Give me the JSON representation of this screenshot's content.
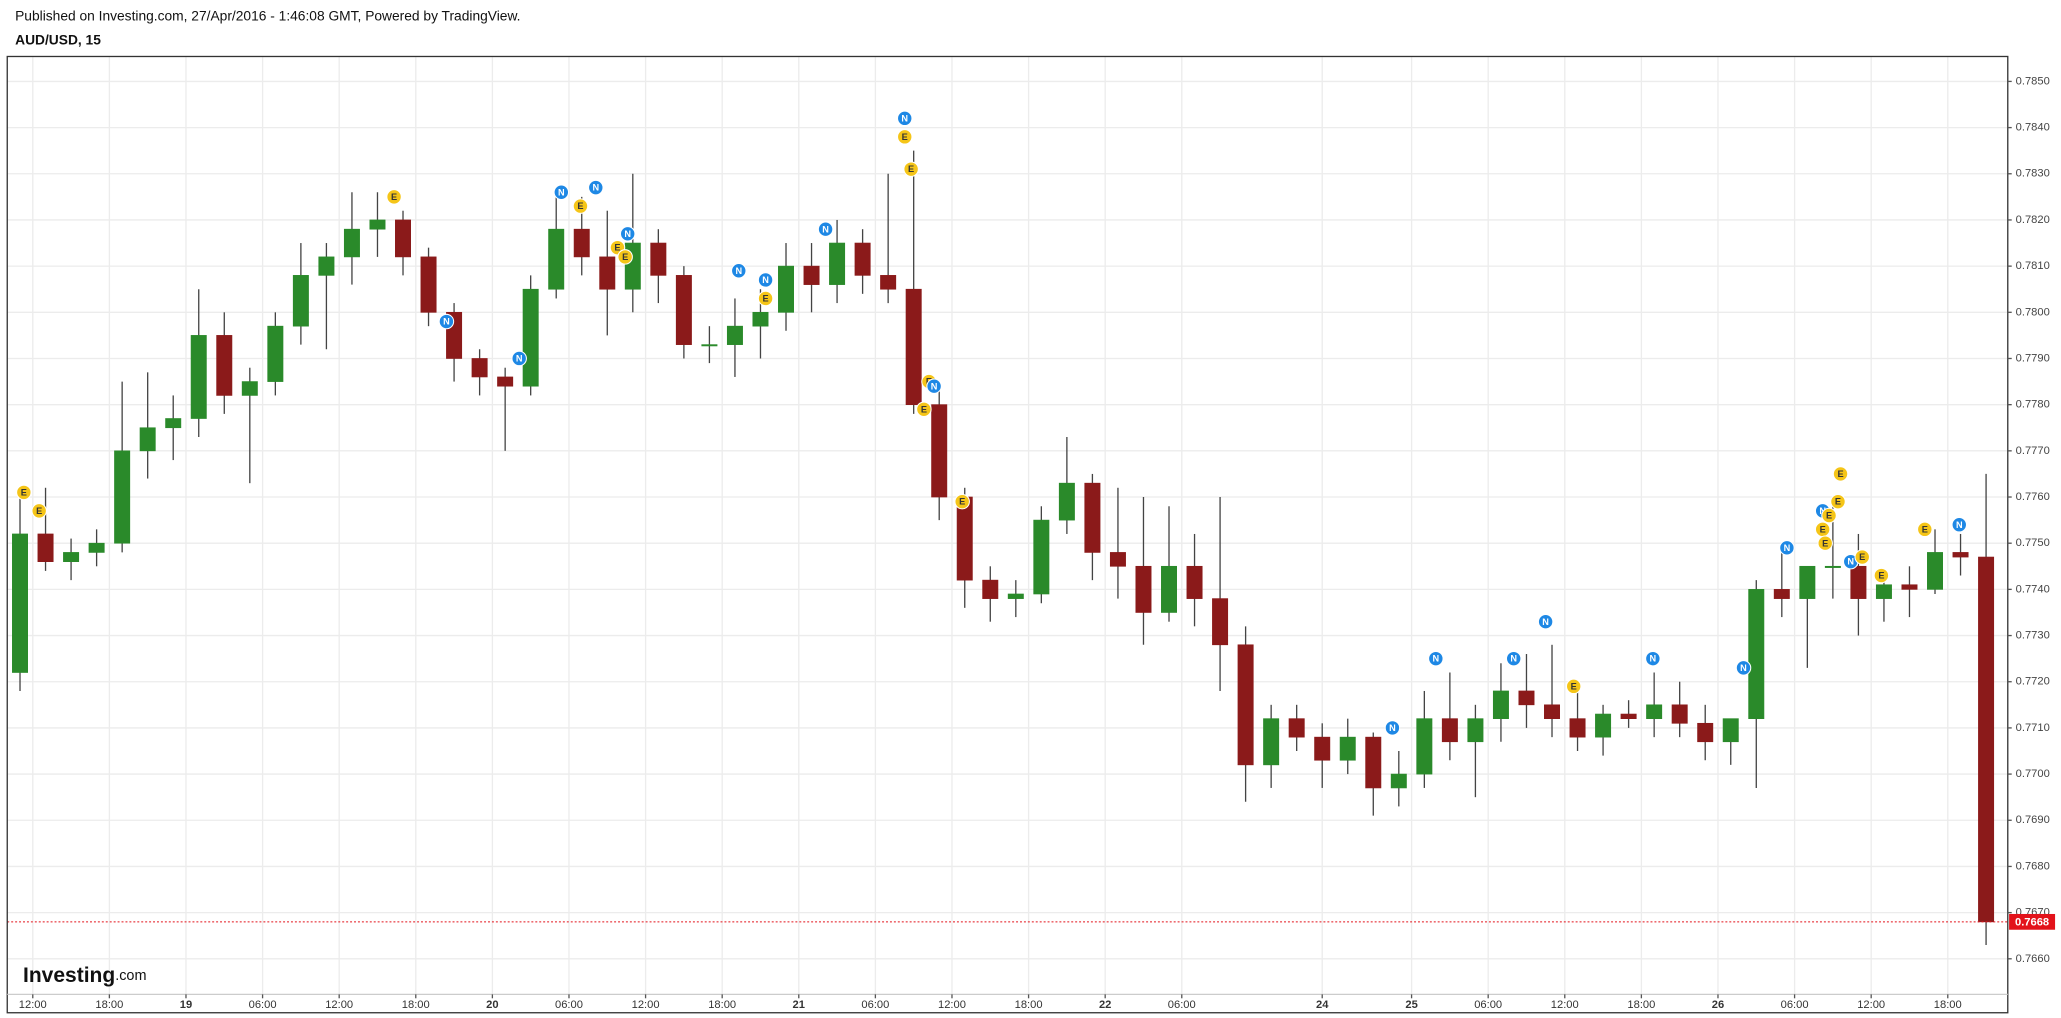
{
  "chart_data": {
    "type": "candlestick",
    "subtitle": "Published on Investing.com, 27/Apr/2016 - 1:46:08 GMT, Powered by TradingView.",
    "title": "AUD/USD, 15",
    "x": [
      10,
      12,
      14,
      16,
      18,
      20,
      22,
      24,
      26,
      28,
      30,
      32,
      34,
      36,
      38,
      40,
      42,
      44,
      46,
      48,
      50,
      52,
      54,
      56,
      58,
      60,
      62,
      64,
      66,
      68,
      70,
      72,
      74,
      76,
      78,
      80,
      82,
      84,
      86,
      88,
      90,
      92,
      94,
      96,
      98,
      100,
      102,
      104,
      106,
      108,
      110,
      112,
      114,
      116,
      118,
      120,
      122,
      124,
      126,
      128,
      130,
      132,
      134,
      136,
      138,
      140,
      142,
      144,
      146,
      148,
      150,
      152,
      154,
      156,
      158,
      160,
      162,
      164
    ],
    "open": [
      0.7722,
      0.7752,
      0.7746,
      0.7748,
      0.775,
      0.777,
      0.7775,
      0.7777,
      0.7795,
      0.7782,
      0.7785,
      0.7797,
      0.7808,
      0.7812,
      0.7818,
      0.782,
      0.7812,
      0.78,
      0.779,
      0.7786,
      0.7784,
      0.7805,
      0.7818,
      0.7812,
      0.7805,
      0.7815,
      0.7808,
      0.7793,
      0.7793,
      0.7797,
      0.78,
      0.781,
      0.7806,
      0.7815,
      0.7808,
      0.7805,
      0.778,
      0.776,
      0.7742,
      0.7738,
      0.7739,
      0.7755,
      0.7763,
      0.7748,
      0.7745,
      0.7735,
      0.7745,
      0.7738,
      0.7728,
      0.7702,
      0.7712,
      0.7708,
      0.7703,
      0.7708,
      0.7697,
      0.77,
      0.7712,
      0.7707,
      0.7712,
      0.7718,
      0.7715,
      0.7712,
      0.7708,
      0.7713,
      0.7712,
      0.7715,
      0.7711,
      0.7707,
      0.7712,
      0.774,
      0.7738,
      0.7745,
      0.7745,
      0.7738,
      0.7741,
      0.774,
      0.7748,
      0.7747
    ],
    "high": [
      0.7762,
      0.7762,
      0.7751,
      0.7753,
      0.7785,
      0.7787,
      0.7782,
      0.7805,
      0.78,
      0.7788,
      0.78,
      0.7815,
      0.7815,
      0.7826,
      0.7826,
      0.7822,
      0.7814,
      0.7802,
      0.7792,
      0.7788,
      0.7808,
      0.7825,
      0.7825,
      0.7822,
      0.783,
      0.7818,
      0.781,
      0.7797,
      0.7803,
      0.7805,
      0.7815,
      0.7815,
      0.782,
      0.7818,
      0.783,
      0.7835,
      0.7783,
      0.7762,
      0.7745,
      0.7742,
      0.7758,
      0.7773,
      0.7765,
      0.7762,
      0.776,
      0.7758,
      0.7752,
      0.776,
      0.7732,
      0.7715,
      0.7715,
      0.7711,
      0.7712,
      0.7709,
      0.7705,
      0.7718,
      0.7722,
      0.7715,
      0.7724,
      0.7726,
      0.7728,
      0.7718,
      0.7715,
      0.7716,
      0.7722,
      0.772,
      0.7715,
      0.7712,
      0.7742,
      0.7748,
      0.7745,
      0.776,
      0.7752,
      0.7744,
      0.7745,
      0.7753,
      0.7752,
      0.7765
    ],
    "low": [
      0.7718,
      0.7744,
      0.7742,
      0.7745,
      0.7748,
      0.7764,
      0.7768,
      0.7773,
      0.7778,
      0.7763,
      0.7782,
      0.7793,
      0.7792,
      0.7806,
      0.7812,
      0.7808,
      0.7797,
      0.7785,
      0.7782,
      0.777,
      0.7782,
      0.7803,
      0.7808,
      0.7795,
      0.78,
      0.7802,
      0.779,
      0.7789,
      0.7786,
      0.779,
      0.7796,
      0.78,
      0.7802,
      0.7804,
      0.7802,
      0.7778,
      0.7755,
      0.7736,
      0.7733,
      0.7734,
      0.7737,
      0.7752,
      0.7742,
      0.7738,
      0.7728,
      0.7733,
      0.7732,
      0.7718,
      0.7694,
      0.7697,
      0.7705,
      0.7697,
      0.77,
      0.7691,
      0.7693,
      0.7697,
      0.7703,
      0.7695,
      0.7707,
      0.771,
      0.7708,
      0.7705,
      0.7704,
      0.771,
      0.7708,
      0.7708,
      0.7703,
      0.7702,
      0.7697,
      0.7734,
      0.7723,
      0.7738,
      0.773,
      0.7733,
      0.7734,
      0.7739,
      0.7743,
      0.7663
    ],
    "close": [
      0.7752,
      0.7746,
      0.7748,
      0.775,
      0.777,
      0.7775,
      0.7777,
      0.7795,
      0.7782,
      0.7785,
      0.7797,
      0.7808,
      0.7812,
      0.7818,
      0.782,
      0.7812,
      0.78,
      0.779,
      0.7786,
      0.7784,
      0.7805,
      0.7818,
      0.7812,
      0.7805,
      0.7815,
      0.7808,
      0.7793,
      0.7793,
      0.7797,
      0.78,
      0.781,
      0.7806,
      0.7815,
      0.7808,
      0.7805,
      0.778,
      0.776,
      0.7742,
      0.7738,
      0.7739,
      0.7755,
      0.7763,
      0.7748,
      0.7745,
      0.7735,
      0.7745,
      0.7738,
      0.7728,
      0.7702,
      0.7712,
      0.7708,
      0.7703,
      0.7708,
      0.7697,
      0.77,
      0.7712,
      0.7707,
      0.7712,
      0.7718,
      0.7715,
      0.7712,
      0.7708,
      0.7713,
      0.7712,
      0.7715,
      0.7711,
      0.7707,
      0.7712,
      0.774,
      0.7738,
      0.7745,
      0.7745,
      0.7738,
      0.7741,
      0.774,
      0.7748,
      0.7747,
      0.7668
    ],
    "up_color": "#2a8a2a",
    "down_color": "#8b1a1a",
    "xlim": [
      10,
      166.7
    ],
    "xticks": [
      {
        "value": 12,
        "label": "12:00"
      },
      {
        "value": 18,
        "label": "18:00"
      },
      {
        "value": 24,
        "label": "19"
      },
      {
        "value": 30,
        "label": "06:00"
      },
      {
        "value": 36,
        "label": "12:00"
      },
      {
        "value": 42,
        "label": "18:00"
      },
      {
        "value": 48,
        "label": "20"
      },
      {
        "value": 54,
        "label": "06:00"
      },
      {
        "value": 60,
        "label": "12:00"
      },
      {
        "value": 66,
        "label": "18:00"
      },
      {
        "value": 72,
        "label": "21"
      },
      {
        "value": 78,
        "label": "06:00"
      },
      {
        "value": 84,
        "label": "12:00"
      },
      {
        "value": 90,
        "label": "18:00"
      },
      {
        "value": 96,
        "label": "22"
      },
      {
        "value": 102,
        "label": "06:00"
      },
      {
        "value": 113,
        "label": "24"
      },
      {
        "value": 120,
        "label": "25"
      },
      {
        "value": 126,
        "label": "06:00"
      },
      {
        "value": 132,
        "label": "12:00"
      },
      {
        "value": 138,
        "label": "18:00"
      },
      {
        "value": 144,
        "label": "26"
      },
      {
        "value": 150,
        "label": "06:00"
      },
      {
        "value": 156,
        "label": "12:00"
      },
      {
        "value": 162,
        "label": "18:00"
      }
    ],
    "ylim": [
      0.76523,
      0.78554
    ],
    "yticks": [
      {
        "value": 0.766,
        "label": "0.7660"
      },
      {
        "value": 0.767,
        "label": "0.7670"
      },
      {
        "value": 0.768,
        "label": "0.7680"
      },
      {
        "value": 0.769,
        "label": "0.7690"
      },
      {
        "value": 0.77,
        "label": "0.7700"
      },
      {
        "value": 0.771,
        "label": "0.7710"
      },
      {
        "value": 0.772,
        "label": "0.7720"
      },
      {
        "value": 0.773,
        "label": "0.7730"
      },
      {
        "value": 0.774,
        "label": "0.7740"
      },
      {
        "value": 0.775,
        "label": "0.7750"
      },
      {
        "value": 0.776,
        "label": "0.7760"
      },
      {
        "value": 0.777,
        "label": "0.7770"
      },
      {
        "value": 0.778,
        "label": "0.7780"
      },
      {
        "value": 0.779,
        "label": "0.7790"
      },
      {
        "value": 0.78,
        "label": "0.7800"
      },
      {
        "value": 0.781,
        "label": "0.7810"
      },
      {
        "value": 0.782,
        "label": "0.7820"
      },
      {
        "value": 0.783,
        "label": "0.7830"
      },
      {
        "value": 0.784,
        "label": "0.7840"
      },
      {
        "value": 0.785,
        "label": "0.7850"
      }
    ],
    "grid": true,
    "last_price": 0.7668,
    "last_price_color": "#e3131b",
    "event_colors": {
      "N": "#1e88e5",
      "E": "#f5c518"
    },
    "event_text_colors": {
      "N": "#ffffff",
      "E": "#333333"
    },
    "events": [
      {
        "label": "E",
        "x": 11.3,
        "y": 0.7761
      },
      {
        "label": "E",
        "x": 12.5,
        "y": 0.7757
      },
      {
        "label": "E",
        "x": 40.3,
        "y": 0.7825
      },
      {
        "label": "N",
        "x": 44.4,
        "y": 0.7798
      },
      {
        "label": "N",
        "x": 50.1,
        "y": 0.779
      },
      {
        "label": "N",
        "x": 53.4,
        "y": 0.7826
      },
      {
        "label": "E",
        "x": 54.9,
        "y": 0.7823
      },
      {
        "label": "N",
        "x": 56.1,
        "y": 0.7827
      },
      {
        "label": "E",
        "x": 57.8,
        "y": 0.7814
      },
      {
        "label": "E",
        "x": 58.4,
        "y": 0.7812
      },
      {
        "label": "N",
        "x": 58.6,
        "y": 0.7817
      },
      {
        "label": "N",
        "x": 67.3,
        "y": 0.7809
      },
      {
        "label": "N",
        "x": 69.4,
        "y": 0.7807
      },
      {
        "label": "E",
        "x": 69.4,
        "y": 0.7803
      },
      {
        "label": "N",
        "x": 74.1,
        "y": 0.7818
      },
      {
        "label": "N",
        "x": 80.3,
        "y": 0.7842
      },
      {
        "label": "E",
        "x": 80.3,
        "y": 0.7838
      },
      {
        "label": "E",
        "x": 80.8,
        "y": 0.7831
      },
      {
        "label": "E",
        "x": 82.2,
        "y": 0.7785
      },
      {
        "label": "N",
        "x": 82.6,
        "y": 0.7784
      },
      {
        "label": "E",
        "x": 81.8,
        "y": 0.7779
      },
      {
        "label": "E",
        "x": 84.8,
        "y": 0.7759
      },
      {
        "label": "N",
        "x": 118.5,
        "y": 0.771
      },
      {
        "label": "N",
        "x": 121.9,
        "y": 0.7725
      },
      {
        "label": "N",
        "x": 128,
        "y": 0.7725
      },
      {
        "label": "N",
        "x": 130.5,
        "y": 0.7733
      },
      {
        "label": "E",
        "x": 132.7,
        "y": 0.7719
      },
      {
        "label": "N",
        "x": 138.9,
        "y": 0.7725
      },
      {
        "label": "N",
        "x": 146,
        "y": 0.7723
      },
      {
        "label": "N",
        "x": 149.4,
        "y": 0.7749
      },
      {
        "label": "N",
        "x": 152.2,
        "y": 0.7757
      },
      {
        "label": "E",
        "x": 153.6,
        "y": 0.7765
      },
      {
        "label": "E",
        "x": 153.4,
        "y": 0.7759
      },
      {
        "label": "E",
        "x": 152.7,
        "y": 0.7756
      },
      {
        "label": "E",
        "x": 152.2,
        "y": 0.7753
      },
      {
        "label": "E",
        "x": 152.4,
        "y": 0.775
      },
      {
        "label": "N",
        "x": 154.4,
        "y": 0.7746
      },
      {
        "label": "E",
        "x": 155.3,
        "y": 0.7747
      },
      {
        "label": "E",
        "x": 156.8,
        "y": 0.7743
      },
      {
        "label": "E",
        "x": 160.2,
        "y": 0.7753
      },
      {
        "label": "N",
        "x": 162.9,
        "y": 0.7754
      }
    ]
  },
  "logo": {
    "name": "Investing",
    "suffix": ".com"
  }
}
